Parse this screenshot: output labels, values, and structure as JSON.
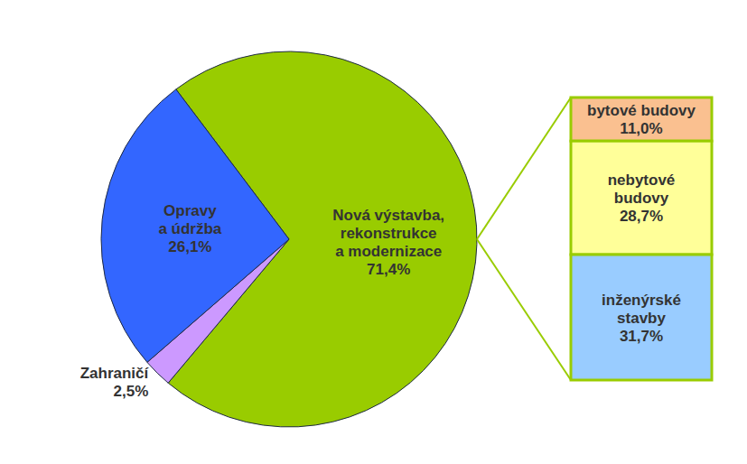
{
  "chart_data": [
    {
      "type": "pie",
      "categories": [
        "Nová výstavba,\nrekonstrukce\na modernizace",
        "Zahraničí",
        "Opravy\na údržba"
      ],
      "values": [
        71.4,
        2.5,
        26.1
      ],
      "value_labels": [
        "71,4%",
        "2,5%",
        "26,1%"
      ],
      "colors": [
        "#99cc00",
        "#cc99ff",
        "#3366ff"
      ],
      "data_labels": true
    },
    {
      "type": "bar",
      "stacked": true,
      "categories": [
        "bytové budovy",
        "nebytové\nbudovy",
        "inženýrské\nstavby"
      ],
      "values": [
        11.0,
        28.7,
        31.7
      ],
      "value_labels": [
        "11,0%",
        "28,7%",
        "31,7%"
      ],
      "colors": [
        "#fac090",
        "#ffff99",
        "#99ccff"
      ],
      "data_labels": true,
      "tick_labels": false
    }
  ]
}
